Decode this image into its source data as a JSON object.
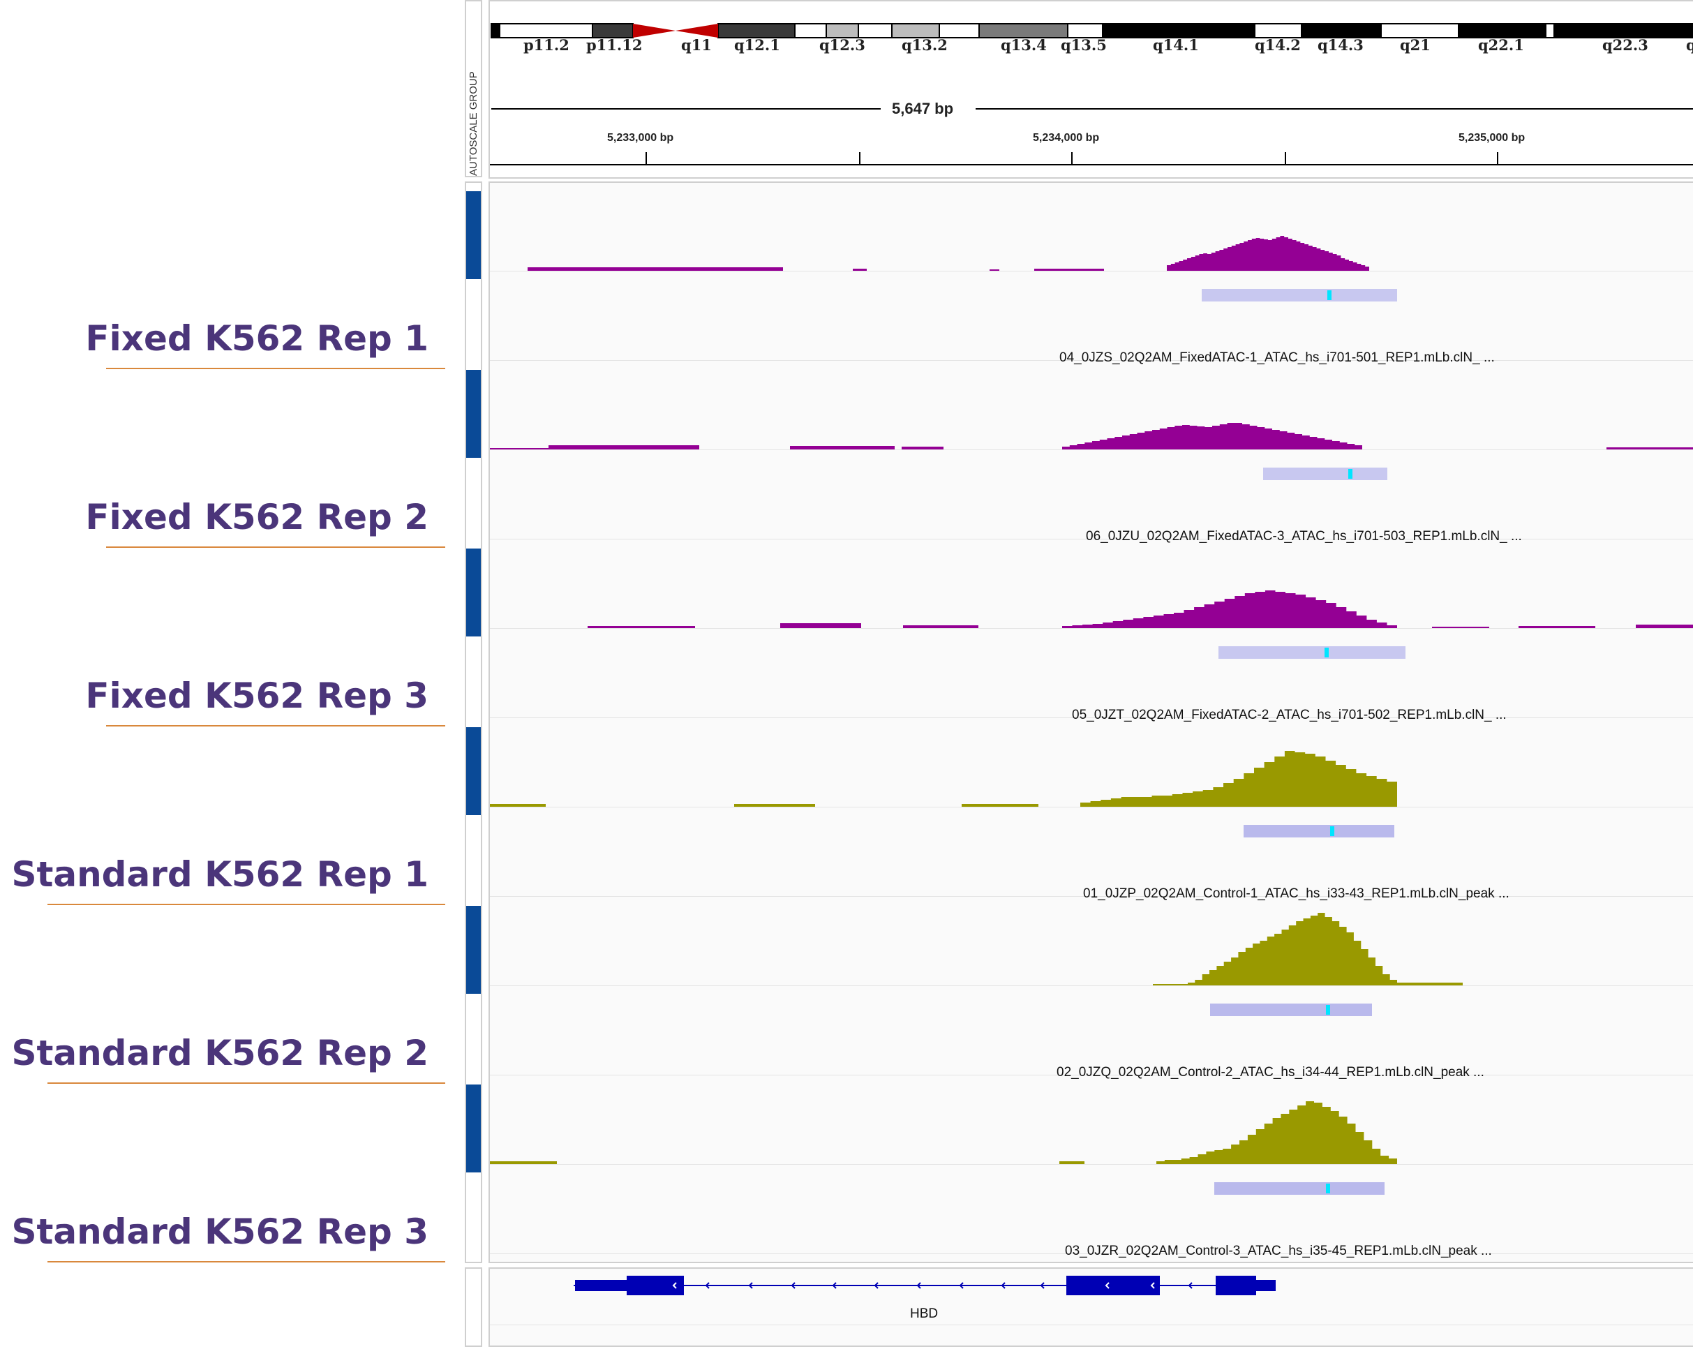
{
  "autoscale_label": "AUTOSCALE GROUP",
  "ideogram": {
    "bands": [
      "p11.2",
      "p11.12",
      "q11",
      "q12.1",
      "q12.3",
      "q13.2",
      "q13.4",
      "q13.5",
      "q14.1",
      "q14.2",
      "q14.3",
      "q21",
      "q22.1",
      "q22.3",
      "q"
    ]
  },
  "ruler": {
    "span": "5,647 bp",
    "ticks": [
      "5,233,000 bp",
      "5,234,000 bp",
      "5,235,000 bp"
    ]
  },
  "tracks": [
    {
      "label": "Fixed K562 Rep 1",
      "peak_name": "04_0JZS_02Q2AM_FixedATAC-1_ATAC_hs_i701-501_REP1.mLb.clN_ ...",
      "color": "#940094"
    },
    {
      "label": "Fixed K562 Rep 2",
      "peak_name": "06_0JZU_02Q2AM_FixedATAC-3_ATAC_hs_i701-503_REP1.mLb.clN_ ...",
      "color": "#940094"
    },
    {
      "label": "Fixed K562 Rep 3",
      "peak_name": "05_0JZT_02Q2AM_FixedATAC-2_ATAC_hs_i701-502_REP1.mLb.clN_ ...",
      "color": "#940094"
    },
    {
      "label": "Standard K562 Rep 1",
      "peak_name": "01_0JZP_02Q2AM_Control-1_ATAC_hs_i33-43_REP1.mLb.clN_peak ...",
      "color": "#999900"
    },
    {
      "label": "Standard K562 Rep 2",
      "peak_name": "02_0JZQ_02Q2AM_Control-2_ATAC_hs_i34-44_REP1.mLb.clN_peak ...",
      "color": "#999900"
    },
    {
      "label": "Standard K562 Rep 3",
      "peak_name": "03_0JZR_02Q2AM_Control-3_ATAC_hs_i35-45_REP1.mLb.clN_peak ...",
      "color": "#999900"
    }
  ],
  "gene": {
    "name": "HBD",
    "color": "#0000b4"
  },
  "colors": {
    "label_text": "#4b357a",
    "label_rule": "#d9883c",
    "group_bar": "#0a4a97",
    "peak_bar": "#b9b9ec",
    "summit": "#00e5ff"
  }
}
